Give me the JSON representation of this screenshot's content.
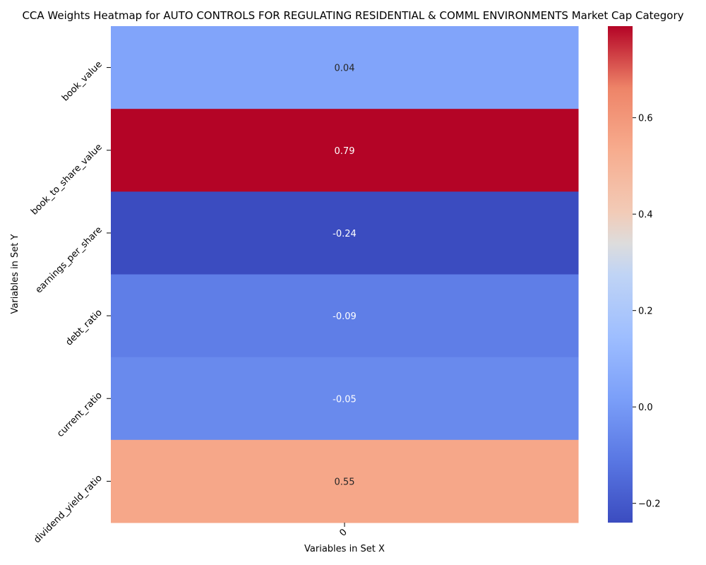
{
  "chart_data": {
    "type": "heatmap",
    "title": "CCA Weights Heatmap for AUTO CONTROLS FOR REGULATING RESIDENTIAL & COMML ENVIRONMENTS Market Cap Category",
    "xlabel": "Variables in Set X",
    "ylabel": "Variables in Set Y",
    "x_categories": [
      "0"
    ],
    "y_categories": [
      "book_value",
      "book_to_share_value",
      "earnings_per_share",
      "debt_ratio",
      "current_ratio",
      "dividend_yield_ratio"
    ],
    "values": [
      [
        0.04
      ],
      [
        0.79
      ],
      [
        -0.24
      ],
      [
        -0.09
      ],
      [
        -0.05
      ],
      [
        0.55
      ]
    ],
    "cell_labels": [
      "0.04",
      "0.79",
      "-0.24",
      "-0.09",
      "-0.05",
      "0.55"
    ],
    "colormap": "coolwarm",
    "vmin": -0.24,
    "vmax": 0.79,
    "colorbar_ticks": [
      -0.2,
      0.0,
      0.2,
      0.4,
      0.6
    ],
    "colorbar_tick_labels": [
      "−0.2",
      "0.0",
      "0.2",
      "0.4",
      "0.6"
    ],
    "colorbar": true,
    "grid": false
  }
}
